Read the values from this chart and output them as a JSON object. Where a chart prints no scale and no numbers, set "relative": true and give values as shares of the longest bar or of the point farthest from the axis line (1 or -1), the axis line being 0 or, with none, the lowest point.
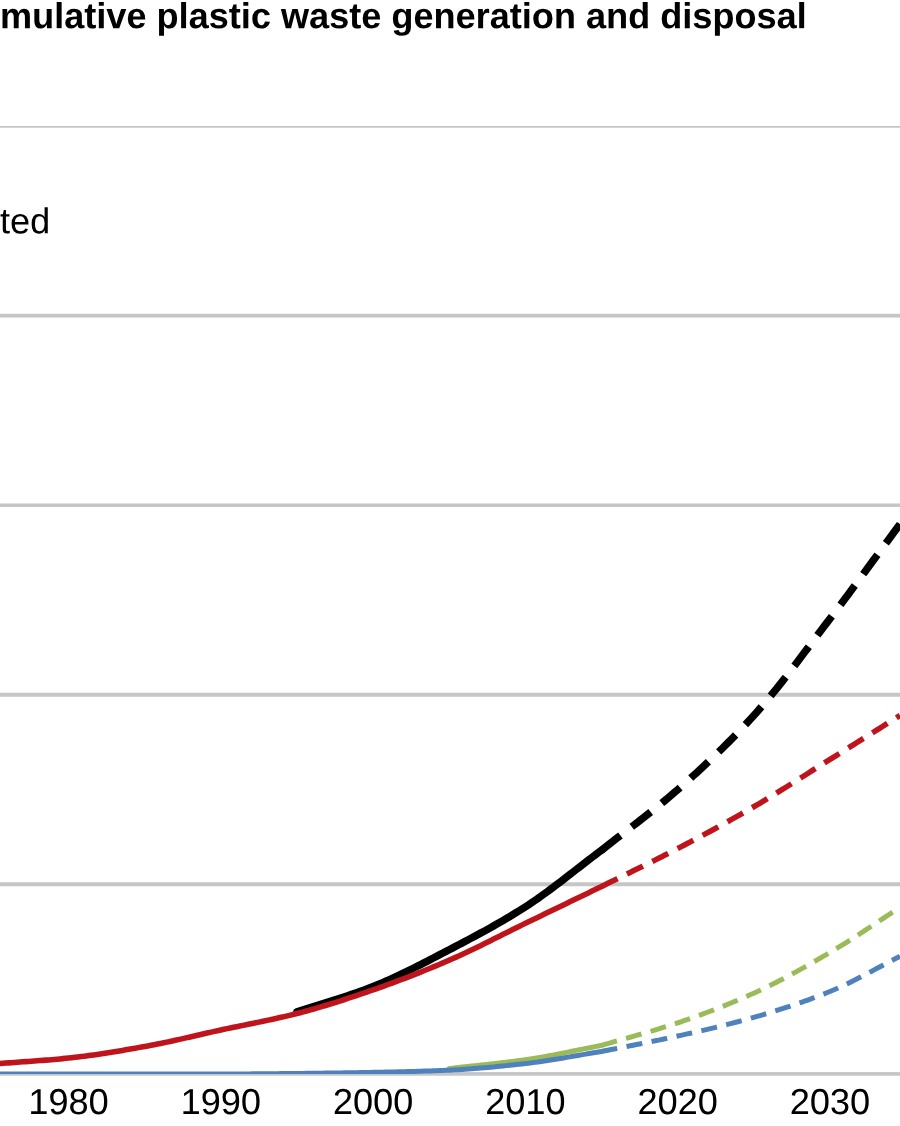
{
  "chart_data": {
    "type": "line",
    "title": "mulative plastic waste generation and disposal",
    "annotations": [
      "ted"
    ],
    "relative": true,
    "xlim": [
      1975.5,
      2034.6
    ],
    "xticks": [
      1980,
      1990,
      2000,
      2010,
      2020,
      2030
    ],
    "grid": "y",
    "tick_labels": "x",
    "ref_lines": [
      {
        "axis": "y",
        "value": 0.345,
        "color": "#c6c6c6"
      },
      {
        "axis": "y",
        "value": 0.69,
        "color": "#c6c6c6"
      }
    ],
    "series": [
      {
        "color": "#000000",
        "line_style": "solid",
        "x": [
          1995,
          2000,
          2005,
          2010,
          2015
        ],
        "values": [
          0.113,
          0.159,
          0.226,
          0.304,
          0.407
        ]
      },
      {
        "color": "#000000",
        "line_style": "dashed",
        "x": [
          2015,
          2020,
          2025,
          2030,
          2034.6
        ],
        "values": [
          0.407,
          0.517,
          0.652,
          0.828,
          1
        ]
      },
      {
        "color": "#c0141c",
        "line_style": "solid",
        "x": [
          1975.5,
          1980,
          1985,
          1990,
          1995,
          2000,
          2005,
          2010,
          2015
        ],
        "values": [
          0.019,
          0.029,
          0.05,
          0.08,
          0.11,
          0.153,
          0.207,
          0.274,
          0.341
        ]
      },
      {
        "color": "#c0141c",
        "line_style": "dashed",
        "x": [
          2015,
          2020,
          2025,
          2030,
          2034.6
        ],
        "values": [
          0.341,
          0.41,
          0.486,
          0.572,
          0.652
        ]
      },
      {
        "color": "#9bbb59",
        "line_style": "solid",
        "x": [
          2005,
          2010,
          2015
        ],
        "values": [
          0.01,
          0.026,
          0.052
        ]
      },
      {
        "color": "#9bbb59",
        "line_style": "dashed",
        "x": [
          2015,
          2020,
          2025,
          2030,
          2034.6
        ],
        "values": [
          0.052,
          0.093,
          0.147,
          0.221,
          0.303
        ]
      },
      {
        "color": "#4f81bd",
        "line_style": "solid",
        "x": [
          1975.5,
          1980,
          1985,
          1990,
          1995,
          2000,
          2005,
          2010,
          2015
        ],
        "values": [
          0,
          0,
          0,
          0,
          0.001,
          0.003,
          0.007,
          0.019,
          0.041
        ]
      },
      {
        "color": "#4f81bd",
        "line_style": "dashed",
        "x": [
          2015,
          2020,
          2025,
          2030,
          2034.6
        ],
        "values": [
          0.041,
          0.069,
          0.103,
          0.15,
          0.214
        ]
      }
    ]
  }
}
